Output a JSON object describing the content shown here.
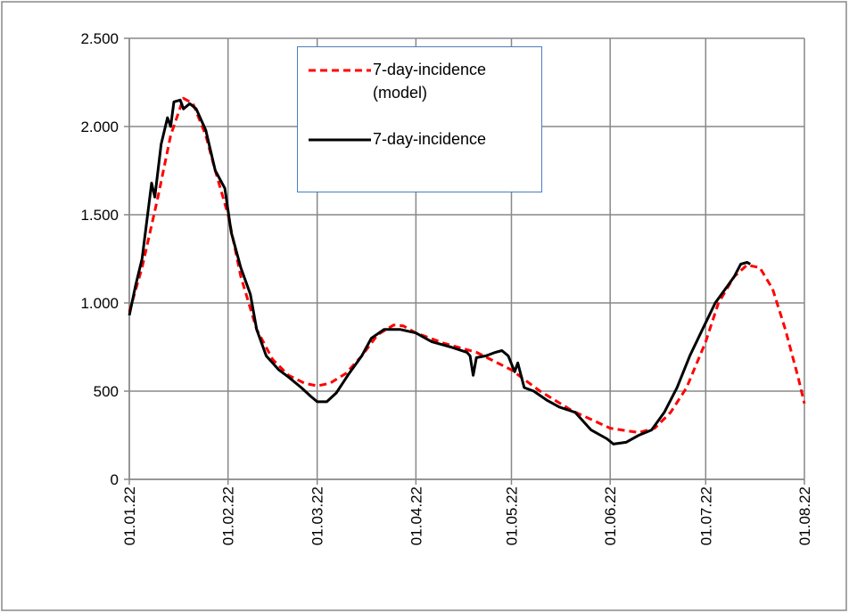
{
  "chart_data": {
    "type": "line",
    "legend": "top",
    "grid": true,
    "ylim": [
      0,
      2500
    ],
    "yticks": [
      0,
      500,
      {
        "value": 1000,
        "label": "1.000"
      },
      {
        "value": 1500,
        "label": "1.500"
      },
      {
        "value": 2000,
        "label": "2.000"
      },
      {
        "value": 2500,
        "label": "2.500"
      }
    ],
    "xlim": [
      "01.01.22",
      "01.08.22"
    ],
    "xticks": [
      "01.01.22",
      "01.02.22",
      "01.03.22",
      "01.04.22",
      "01.05.22",
      "01.06.22",
      "01.07.22",
      "01.08.22"
    ],
    "series": [
      {
        "name": "7-day-incidence (model)",
        "color": "#ff0000",
        "dashed": true,
        "x": [
          "01.01.22",
          "05.01.22",
          "10.01.22",
          "14.01.22",
          "18.01.22",
          "21.01.22",
          "25.01.22",
          "28.01.22",
          "01.02.22",
          "05.02.22",
          "10.02.22",
          "15.02.22",
          "20.02.22",
          "25.02.22",
          "01.03.22",
          "05.03.22",
          "10.03.22",
          "15.03.22",
          "20.03.22",
          "25.03.22",
          "28.03.22",
          "01.04.22",
          "10.04.22",
          "20.04.22",
          "01.05.22",
          "10.05.22",
          "20.05.22",
          "01.06.22",
          "10.06.22",
          "15.06.22",
          "20.06.22",
          "25.06.22",
          "01.07.22",
          "05.07.22",
          "10.07.22",
          "14.07.22",
          "18.07.22",
          "22.07.22",
          "26.07.22",
          "30.07.22",
          "01.08.22"
        ],
        "values": [
          950,
          1200,
          1600,
          1950,
          2160,
          2130,
          1950,
          1750,
          1500,
          1150,
          850,
          680,
          590,
          545,
          530,
          545,
          600,
          700,
          820,
          875,
          870,
          830,
          770,
          720,
          620,
          500,
          390,
          290,
          265,
          290,
          380,
          520,
          780,
          1000,
          1150,
          1215,
          1200,
          1080,
          850,
          580,
          430
        ]
      },
      {
        "name": "7-day-incidence",
        "color": "#000000",
        "dashed": false,
        "x": [
          "01.01.22",
          "03.01.22",
          "05.01.22",
          "08.01.22",
          "09.01.22",
          "11.01.22",
          "13.01.22",
          "14.01.22",
          "15.01.22",
          "17.01.22",
          "18.01.22",
          "20.01.22",
          "22.01.22",
          "25.01.22",
          "28.01.22",
          "31.01.22",
          "02.02.22",
          "05.02.22",
          "08.02.22",
          "10.02.22",
          "13.02.22",
          "17.02.22",
          "20.02.22",
          "24.02.22",
          "27.02.22",
          "01.03.22",
          "04.03.22",
          "07.03.22",
          "11.03.22",
          "15.03.22",
          "18.03.22",
          "22.03.22",
          "27.03.22",
          "01.04.22",
          "06.04.22",
          "12.04.22",
          "17.04.22",
          "18.04.22",
          "19.04.22",
          "20.04.22",
          "23.04.22",
          "26.04.22",
          "28.04.22",
          "30.04.22",
          "02.05.22",
          "03.05.22",
          "05.05.22",
          "08.05.22",
          "12.05.22",
          "16.05.22",
          "21.05.22",
          "26.05.22",
          "31.05.22",
          "02.06.22",
          "06.06.22",
          "10.06.22",
          "14.06.22",
          "18.06.22",
          "22.06.22",
          "26.06.22",
          "30.06.22",
          "04.07.22",
          "08.07.22",
          "10.07.22",
          "12.07.22",
          "14.07.22",
          "15.07.22"
        ],
        "values": [
          930,
          1100,
          1250,
          1680,
          1600,
          1900,
          2050,
          2000,
          2140,
          2150,
          2100,
          2130,
          2100,
          1980,
          1750,
          1650,
          1400,
          1200,
          1050,
          850,
          700,
          620,
          580,
          520,
          470,
          440,
          440,
          490,
          600,
          700,
          800,
          850,
          850,
          830,
          780,
          750,
          720,
          700,
          590,
          690,
          700,
          720,
          730,
          700,
          610,
          660,
          520,
          500,
          450,
          410,
          380,
          280,
          230,
          200,
          210,
          250,
          280,
          380,
          520,
          700,
          850,
          1000,
          1100,
          1150,
          1220,
          1230,
          1220
        ]
      }
    ]
  }
}
